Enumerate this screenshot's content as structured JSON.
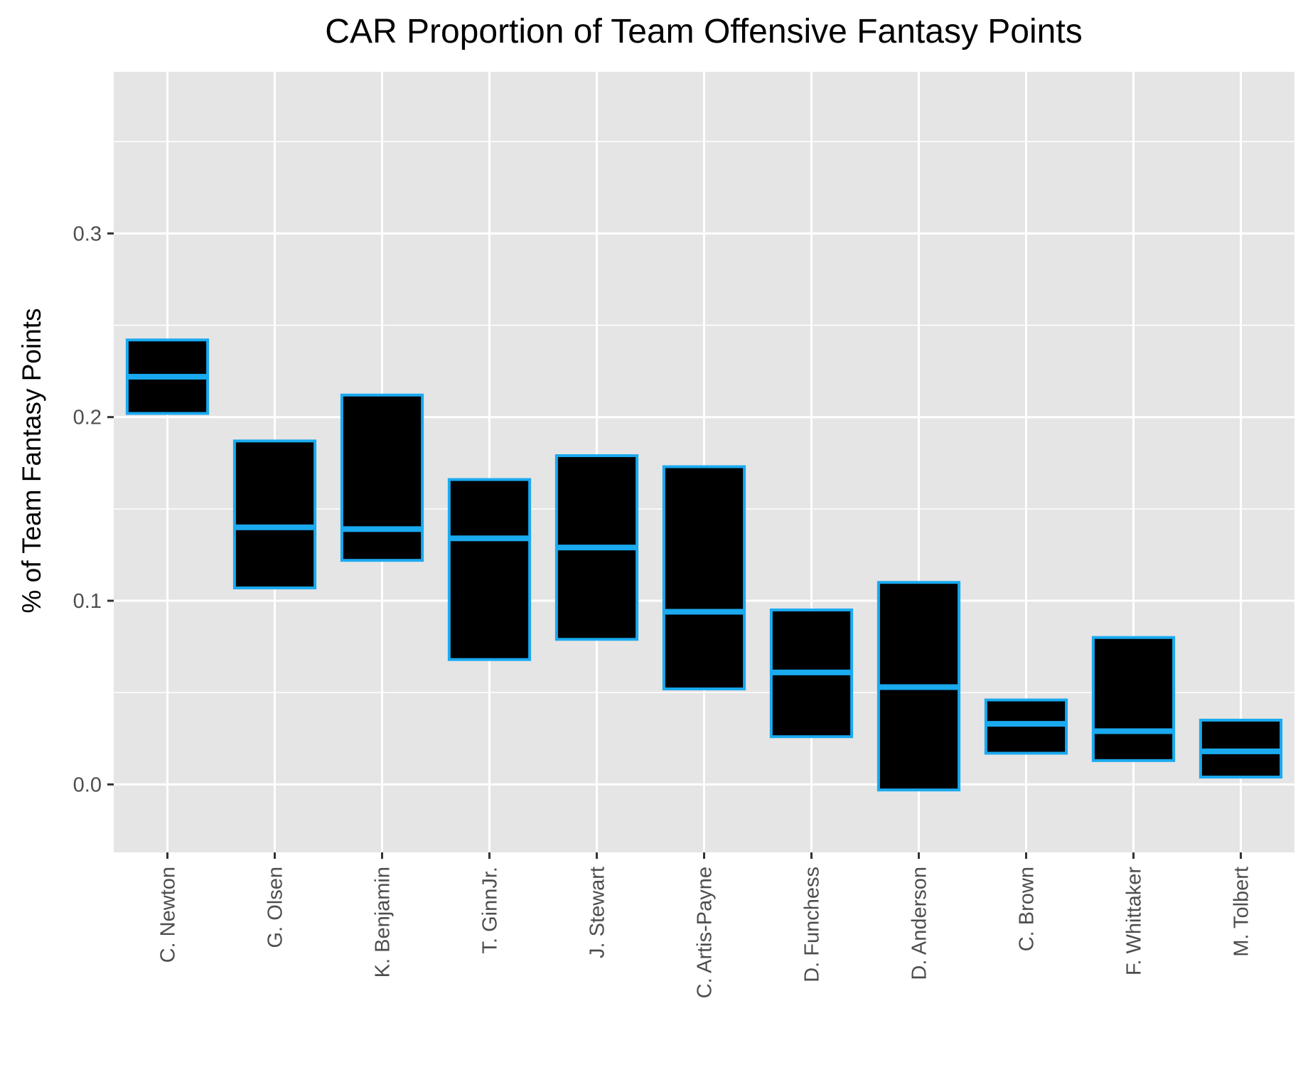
{
  "chart_data": {
    "type": "box",
    "title": "CAR Proportion of Team Offensive Fantasy Points",
    "xlabel": "",
    "ylabel": "% of Team Fantasy Points",
    "ylim": [
      -0.037,
      0.388
    ],
    "yticks": [
      0.0,
      0.1,
      0.2,
      0.3
    ],
    "ytick_labels": [
      "0.0",
      "0.1",
      "0.2",
      "0.3"
    ],
    "grid": true,
    "colors": {
      "panel_background": "#e5e5e5",
      "grid": "#ffffff",
      "box_fill": "#000000",
      "box_outline": "#1aaaf0",
      "tick_text": "#4d4d4d",
      "tick_mark": "#333333"
    },
    "categories": [
      "C. Newton",
      "G. Olsen",
      "K. Benjamin",
      "T. GinnJr.",
      "J. Stewart",
      "C. Artis-Payne",
      "D. Funchess",
      "D. Anderson",
      "C. Brown",
      "F. Whittaker",
      "M. Tolbert"
    ],
    "boxes": [
      {
        "category": "C. Newton",
        "lower": 0.202,
        "middle": 0.222,
        "upper": 0.242
      },
      {
        "category": "G. Olsen",
        "lower": 0.107,
        "middle": 0.14,
        "upper": 0.187
      },
      {
        "category": "K. Benjamin",
        "lower": 0.122,
        "middle": 0.139,
        "upper": 0.212
      },
      {
        "category": "T. GinnJr.",
        "lower": 0.068,
        "middle": 0.134,
        "upper": 0.166
      },
      {
        "category": "J. Stewart",
        "lower": 0.079,
        "middle": 0.129,
        "upper": 0.179
      },
      {
        "category": "C. Artis-Payne",
        "lower": 0.052,
        "middle": 0.094,
        "upper": 0.173
      },
      {
        "category": "D. Funchess",
        "lower": 0.026,
        "middle": 0.061,
        "upper": 0.095
      },
      {
        "category": "D. Anderson",
        "lower": -0.003,
        "middle": 0.053,
        "upper": 0.11
      },
      {
        "category": "C. Brown",
        "lower": 0.017,
        "middle": 0.033,
        "upper": 0.046
      },
      {
        "category": "F. Whittaker",
        "lower": 0.013,
        "middle": 0.029,
        "upper": 0.08
      },
      {
        "category": "M. Tolbert",
        "lower": 0.004,
        "middle": 0.018,
        "upper": 0.035
      }
    ]
  }
}
